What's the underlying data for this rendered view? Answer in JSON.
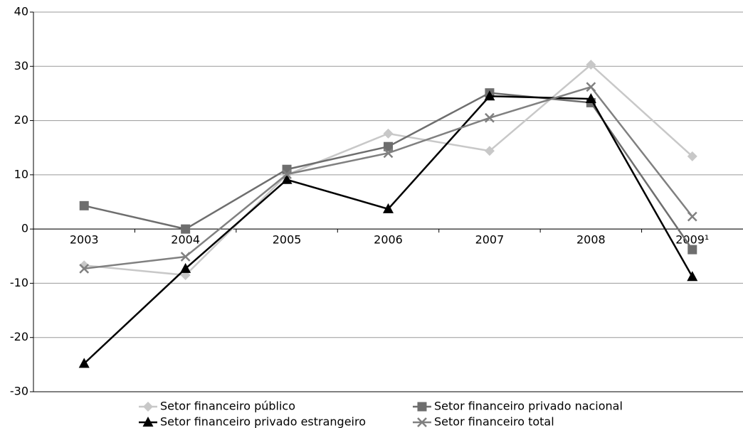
{
  "chart_data": {
    "type": "line",
    "categories": [
      "2003",
      "2004",
      "2005",
      "2006",
      "2007",
      "2008",
      "2009¹"
    ],
    "series": [
      {
        "name": "Setor financeiro público",
        "color": "#c8c8c8",
        "marker": "diamond",
        "values": [
          -6.7,
          -8.5,
          10,
          17.6,
          14.4,
          30.3,
          13.4
        ]
      },
      {
        "name": "Setor financeiro privado nacional",
        "color": "#6e6e6e",
        "marker": "square",
        "values": [
          4.3,
          0,
          11.0,
          15.2,
          25.1,
          23.3,
          -3.8
        ]
      },
      {
        "name": "Setor financeiro privado estrangeiro",
        "color": "#000000",
        "marker": "triangle",
        "values": [
          -24.8,
          -7.3,
          9.1,
          3.7,
          24.5,
          24.0,
          -8.8
        ]
      },
      {
        "name": "Setor financeiro total",
        "color": "#808080",
        "marker": "x",
        "values": [
          -7.3,
          -5.1,
          10.1,
          14.0,
          20.5,
          26.2,
          2.3
        ]
      }
    ],
    "ylim": [
      -30,
      40
    ],
    "yticks": [
      -30,
      -20,
      -10,
      0,
      10,
      20,
      30,
      40
    ],
    "grid": true
  }
}
